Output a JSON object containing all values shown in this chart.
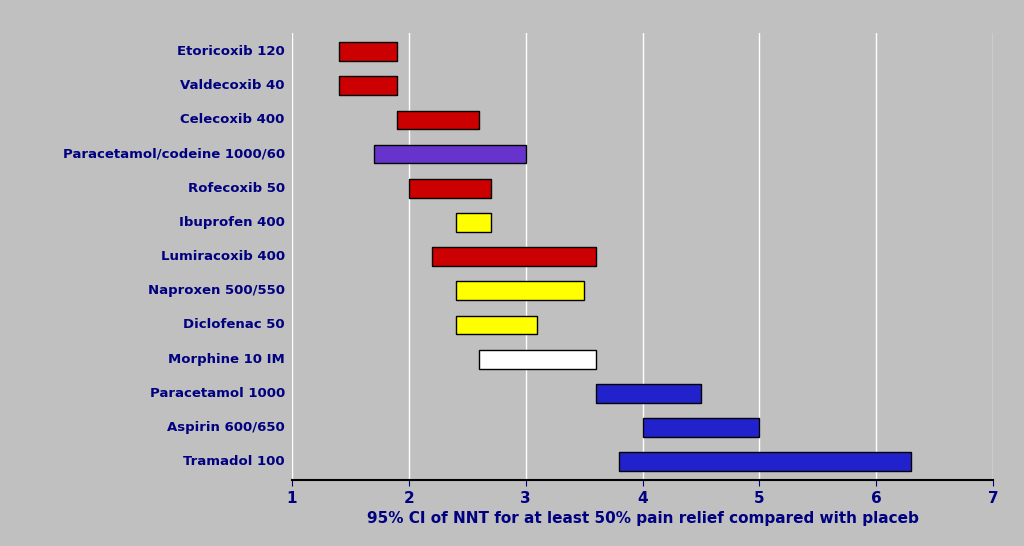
{
  "drugs": [
    "Etoricoxib 120",
    "Valdecoxib 40",
    "Celecoxib 400",
    "Paracetamol/codeine 1000/60",
    "Rofecoxib 50",
    "Ibuprofen 400",
    "Lumiracoxib 400",
    "Naproxen 500/550",
    "Diclofenac 50",
    "Morphine 10 IM",
    "Paracetamol 1000",
    "Aspirin 600/650",
    "Tramadol 100"
  ],
  "bar_starts": [
    1.4,
    1.4,
    1.9,
    1.7,
    2.0,
    2.4,
    2.2,
    2.4,
    2.4,
    2.6,
    3.6,
    4.0,
    3.8
  ],
  "bar_ends": [
    1.9,
    1.9,
    2.6,
    3.0,
    2.7,
    2.7,
    3.6,
    3.5,
    3.1,
    3.6,
    4.5,
    5.0,
    6.3
  ],
  "bar_colors": [
    "#cc0000",
    "#cc0000",
    "#cc0000",
    "#6633cc",
    "#cc0000",
    "#ffff00",
    "#cc0000",
    "#ffff00",
    "#ffff00",
    "#ffffff",
    "#2222cc",
    "#2222cc",
    "#2222cc"
  ],
  "bar_edgecolors": [
    "#000000",
    "#000000",
    "#000000",
    "#000000",
    "#000000",
    "#000000",
    "#000000",
    "#000000",
    "#000000",
    "#000000",
    "#000000",
    "#000000",
    "#000000"
  ],
  "xlabel": "95% CI of NNT for at least 50% pain relief compared with placeb",
  "xlim": [
    1,
    7
  ],
  "xticks": [
    1,
    2,
    3,
    4,
    5,
    6,
    7
  ],
  "background_color": "#c0c0c0",
  "label_color": "#000080",
  "tick_color": "#000080",
  "grid_color": "#ffffff",
  "bar_height": 0.55,
  "label_fontsize": 9.5,
  "tick_fontsize": 11
}
